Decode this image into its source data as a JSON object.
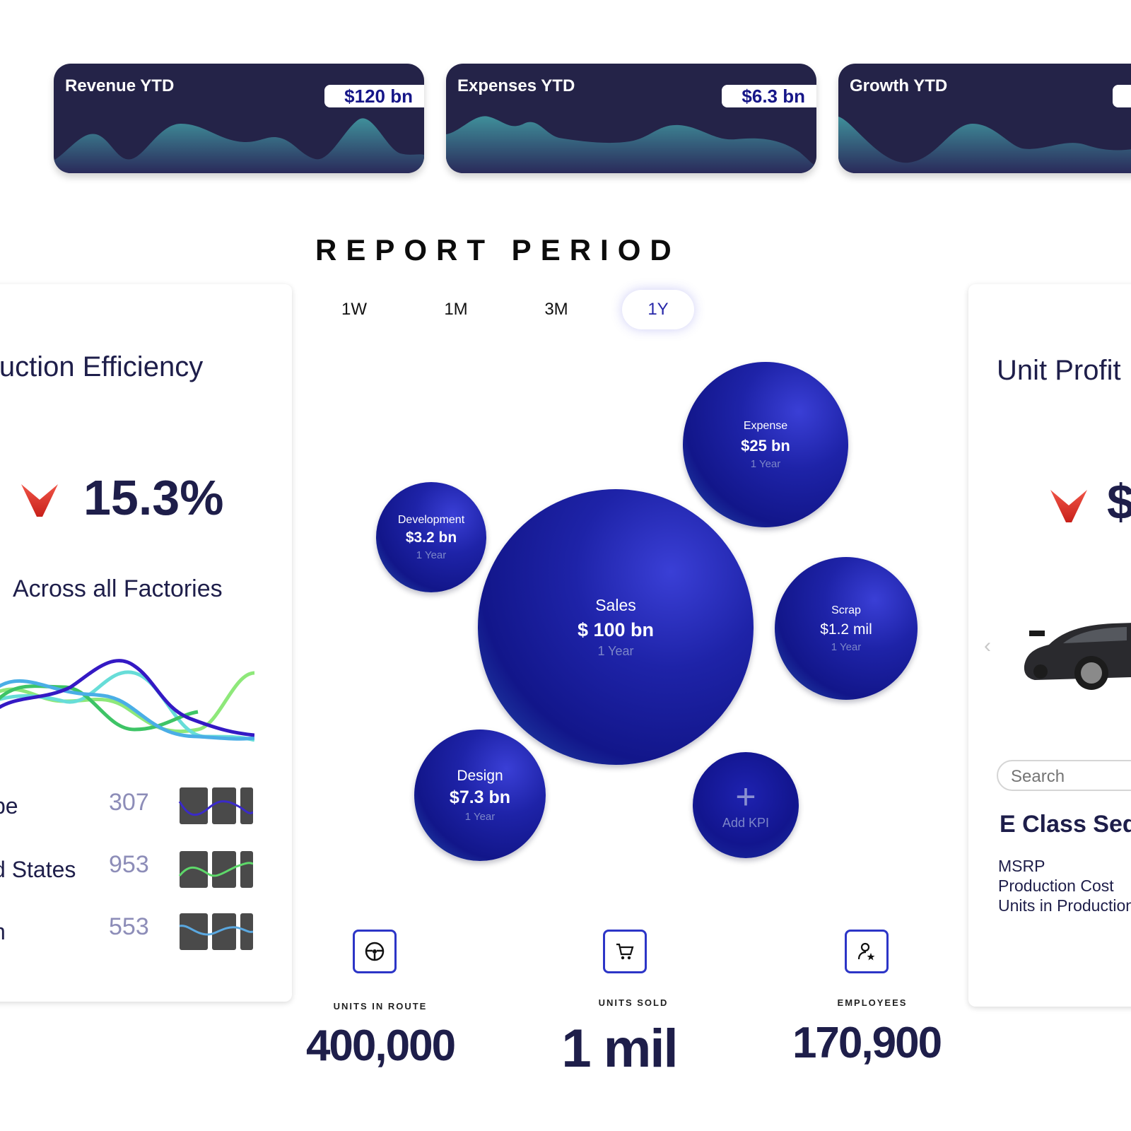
{
  "kpi_cards": [
    {
      "title": "Revenue YTD",
      "value": "$120 bn"
    },
    {
      "title": "Expenses YTD",
      "value": "$6.3 bn"
    },
    {
      "title": "Growth YTD",
      "value": ""
    }
  ],
  "report_period": {
    "title": "REPORT PERIOD",
    "tabs": [
      "1W",
      "1M",
      "3M",
      "1Y"
    ],
    "active_tab": "1Y"
  },
  "efficiency": {
    "title": "luction Efficiency",
    "value": "15.3%",
    "subtitle": "Across all Factories",
    "regions": [
      {
        "name": "pe",
        "value": "307"
      },
      {
        "name": "d States",
        "value": "953"
      },
      {
        "name": "n",
        "value": "553"
      }
    ]
  },
  "bubbles": {
    "sales": {
      "label": "Sales",
      "value": "$ 100 bn",
      "period": "1 Year"
    },
    "expense": {
      "label": "Expense",
      "value": "$25 bn",
      "period": "1 Year"
    },
    "development": {
      "label": "Development",
      "value": "$3.2 bn",
      "period": "1 Year"
    },
    "scrap": {
      "label": "Scrap",
      "value": "$1.2 mil",
      "period": "1 Year"
    },
    "design": {
      "label": "Design",
      "value": "$7.3 bn",
      "period": "1 Year"
    },
    "add_kpi": {
      "icon": "plus-icon",
      "label": "Add KPI"
    }
  },
  "stats": [
    {
      "label": "UNITS IN ROUTE",
      "value": "400,000",
      "icon": "steering-wheel-icon"
    },
    {
      "label": "UNITS SOLD",
      "value": "1 mil",
      "icon": "shopping-cart-icon"
    },
    {
      "label": "EMPLOYEES",
      "value": "170,900",
      "icon": "employee-star-icon"
    }
  ],
  "unit_profit": {
    "title": "Unit Profit",
    "value": "$",
    "search_placeholder": "Search",
    "model": "E Class Sed",
    "details": [
      "MSRP",
      "Production Cost",
      "Units in Production"
    ]
  },
  "colors": {
    "card_bg": "#242348",
    "accent": "#2c35c7",
    "down_arrow": "#e0352b"
  }
}
